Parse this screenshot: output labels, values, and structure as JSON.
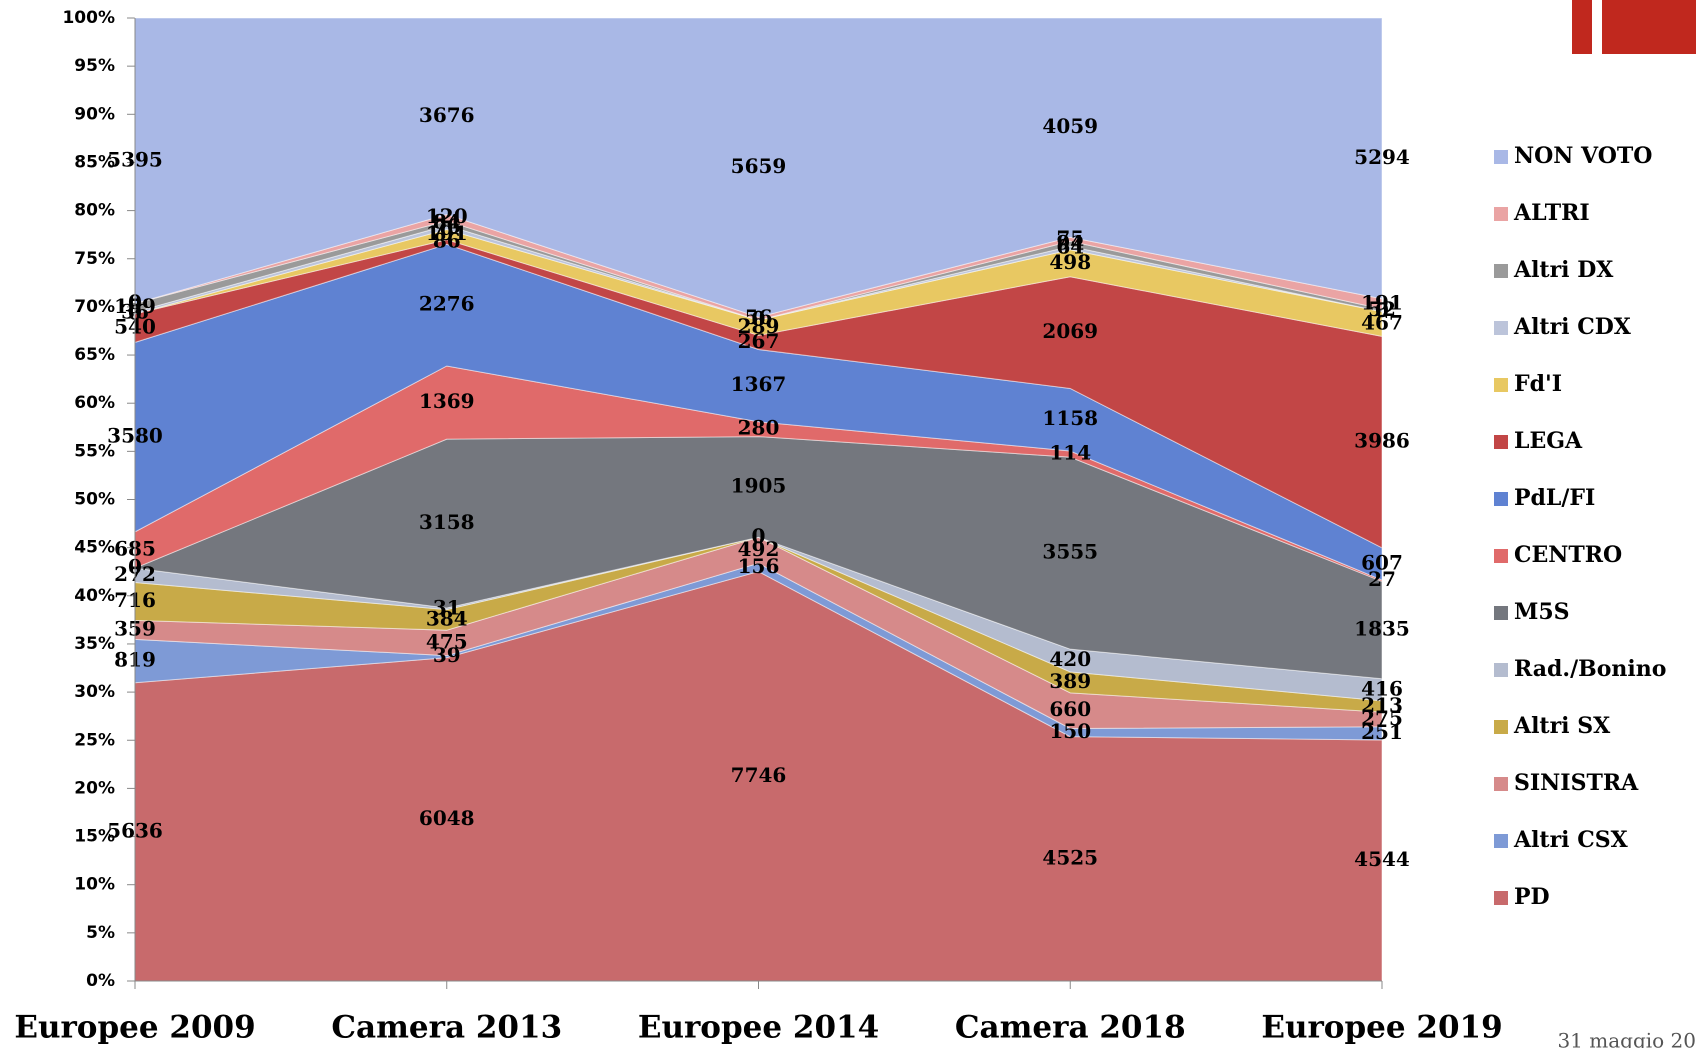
{
  "chart_data": {
    "type": "stacked_area_percent",
    "categories": [
      "Europee 2009",
      "Camera 2013",
      "Europee 2014",
      "Camera 2018",
      "Europee 2019"
    ],
    "series": [
      {
        "name": "PD",
        "color": "#c86a6c",
        "values": [
          5636,
          6048,
          7746,
          4525,
          4544
        ]
      },
      {
        "name": "Altri CSX",
        "color": "#7e9ad6",
        "values": [
          819,
          39,
          156,
          150,
          251
        ]
      },
      {
        "name": "SINISTRA",
        "color": "#d68a8a",
        "values": [
          359,
          475,
          492,
          660,
          275
        ]
      },
      {
        "name": "Altri SX",
        "color": "#c8aa48",
        "values": [
          716,
          384,
          0,
          389,
          213
        ]
      },
      {
        "name": "Rad./Bonino",
        "color": "#b4bccf",
        "values": [
          272,
          31,
          0,
          420,
          416
        ]
      },
      {
        "name": "M5S",
        "color": "#74777e",
        "values": [
          0,
          3158,
          1905,
          3555,
          1835
        ]
      },
      {
        "name": "CENTRO",
        "color": "#e06a6a",
        "values": [
          685,
          1369,
          280,
          114,
          27
        ]
      },
      {
        "name": "PdL/FI",
        "color": "#5f82d2",
        "values": [
          3580,
          2276,
          1367,
          1158,
          607
        ]
      },
      {
        "name": "LEGA",
        "color": "#c24646",
        "values": [
          540,
          86,
          267,
          2069,
          3986
        ]
      },
      {
        "name": "Fd'I",
        "color": "#e8c862",
        "values": [
          0,
          191,
          289,
          498,
          467
        ]
      },
      {
        "name": "Altri CDX",
        "color": "#bcc4da",
        "values": [
          36,
          76,
          0,
          64,
          0
        ]
      },
      {
        "name": "Altri DX",
        "color": "#9a9a9a",
        "values": [
          159,
          84,
          0,
          94,
          52
        ]
      },
      {
        "name": "ALTRI",
        "color": "#eaa4a4",
        "values": [
          0,
          120,
          56,
          75,
          191
        ]
      },
      {
        "name": "NON VOTO",
        "color": "#a9b8e6",
        "values": [
          5395,
          3676,
          5659,
          4059,
          5294
        ]
      }
    ],
    "ylim": [
      0,
      100
    ],
    "yticks": [
      {
        "value": 0,
        "label": "0%"
      },
      {
        "value": 5,
        "label": "5%"
      },
      {
        "value": 10,
        "label": "10%"
      },
      {
        "value": 15,
        "label": "15%"
      },
      {
        "value": 20,
        "label": "20%"
      },
      {
        "value": 25,
        "label": "25%"
      },
      {
        "value": 30,
        "label": "30%"
      },
      {
        "value": 35,
        "label": "35%"
      },
      {
        "value": 40,
        "label": "40%"
      },
      {
        "value": 45,
        "label": "45%"
      },
      {
        "value": 50,
        "label": "50%"
      },
      {
        "value": 55,
        "label": "55%"
      },
      {
        "value": 60,
        "label": "60%"
      },
      {
        "value": 65,
        "label": "65%"
      },
      {
        "value": 70,
        "label": "70%"
      },
      {
        "value": 75,
        "label": "75%"
      },
      {
        "value": 80,
        "label": "80%"
      },
      {
        "value": 85,
        "label": "85%"
      },
      {
        "value": 90,
        "label": "90%"
      },
      {
        "value": 95,
        "label": "95%"
      },
      {
        "value": 100,
        "label": "100%"
      }
    ],
    "legend": "right",
    "footer": "31 maggio 20"
  }
}
